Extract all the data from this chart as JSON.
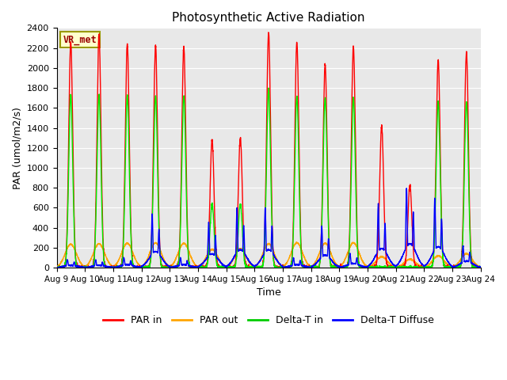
{
  "title": "Photosynthetic Active Radiation",
  "xlabel": "Time",
  "ylabel": "PAR (umol/m2/s)",
  "yticks": [
    0,
    200,
    400,
    600,
    800,
    1000,
    1200,
    1400,
    1600,
    1800,
    2000,
    2200,
    2400
  ],
  "ylim": [
    0,
    2400
  ],
  "xtick_labels": [
    "Aug 9",
    "Aug 10",
    "Aug 11",
    "Aug 12",
    "Aug 13",
    "Aug 14",
    "Aug 15",
    "Aug 16",
    "Aug 17",
    "Aug 18",
    "Aug 19",
    "Aug 20",
    "Aug 21",
    "Aug 22",
    "Aug 23",
    "Aug 24"
  ],
  "legend_labels": [
    "PAR in",
    "PAR out",
    "Delta-T in",
    "Delta-T Diffuse"
  ],
  "legend_colors": [
    "#ff0000",
    "#ffa500",
    "#00cc00",
    "#0000ff"
  ],
  "annotation_text": "VR_met",
  "annotation_box_color": "#ffffcc",
  "annotation_box_edgecolor": "#999900",
  "annotation_text_color": "#990000",
  "bg_color": "#e8e8e8",
  "fig_bg_color": "#ffffff",
  "line_width": 1.0,
  "par_in_color": "#ff0000",
  "par_out_color": "#ffa500",
  "delta_t_color": "#00ee00",
  "delta_diffuse_color": "#0000ff"
}
